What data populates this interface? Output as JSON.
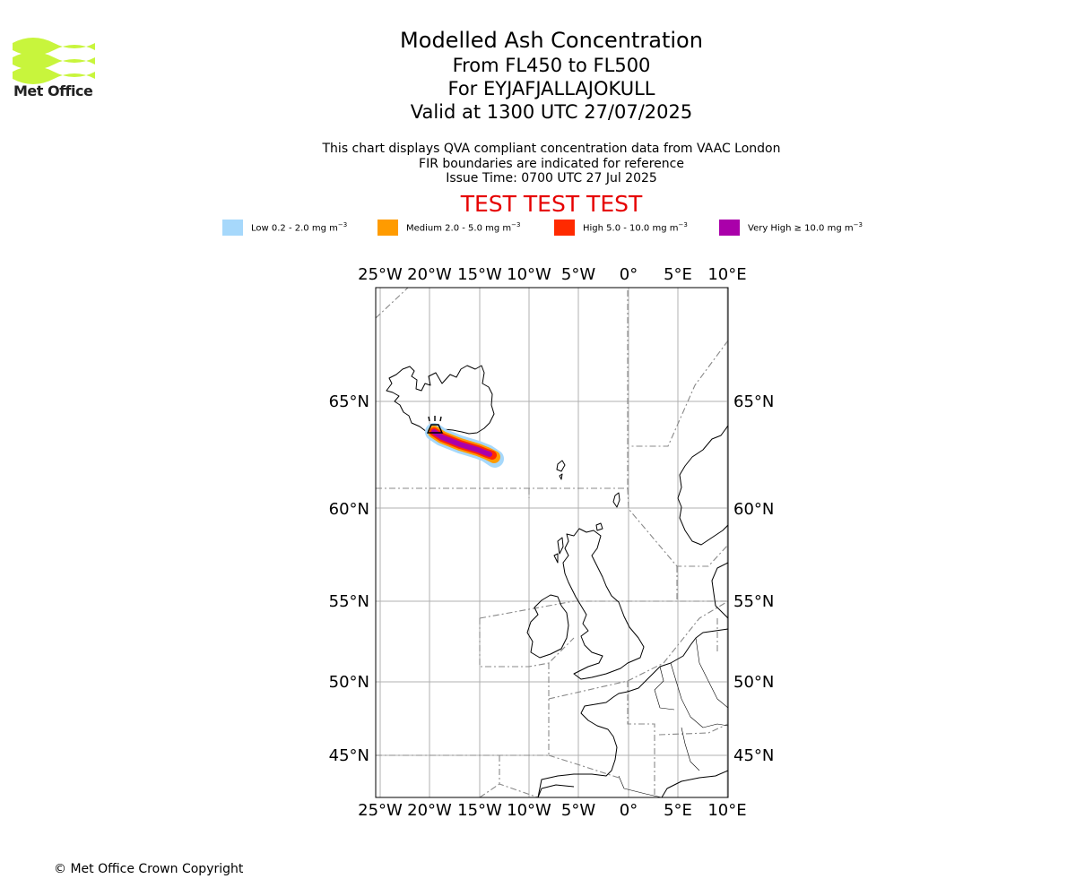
{
  "logo": {
    "text": "Met Office",
    "colors": {
      "wave": "#c8f53c",
      "text": "#222222"
    }
  },
  "title": {
    "line1": "Modelled Ash Concentration",
    "line2": "From FL450 to FL500",
    "line3": "For EYJAFJALLAJOKULL",
    "line4": "Valid at 1300 UTC 27/07/2025"
  },
  "info": {
    "line1": "This chart displays QVA compliant concentration data from VAAC London",
    "line2": "FIR boundaries are indicated for reference",
    "line3": "Issue Time: 0700 UTC 27 Jul 2025"
  },
  "test_banner": "TEST TEST TEST",
  "legend": [
    {
      "label": "Low 0.2 - 2.0 mg m",
      "sup": "−3",
      "color": "#a6d8fb"
    },
    {
      "label": "Medium 2.0 - 5.0 mg m",
      "sup": "−3",
      "color": "#ff9b00"
    },
    {
      "label": "High 5.0 - 10.0 mg m",
      "sup": "−3",
      "color": "#ff2a00"
    },
    {
      "label": "Very High  ≥  10.0 mg m",
      "sup": "−3",
      "color": "#aa00aa"
    }
  ],
  "map": {
    "lon_range": [
      -25.5,
      10
    ],
    "lat_range": [
      43,
      69.5
    ],
    "lon_ticks": [
      {
        "value": -25,
        "label": "25°W"
      },
      {
        "value": -20,
        "label": "20°W"
      },
      {
        "value": -15,
        "label": "15°W"
      },
      {
        "value": -10,
        "label": "10°W"
      },
      {
        "value": -5,
        "label": "5°W"
      },
      {
        "value": 0,
        "label": "0°"
      },
      {
        "value": 5,
        "label": "5°E"
      },
      {
        "value": 10,
        "label": "10°E"
      }
    ],
    "lat_ticks": [
      {
        "value": 65,
        "label": "65°N"
      },
      {
        "value": 60,
        "label": "60°N"
      },
      {
        "value": 55,
        "label": "55°N"
      },
      {
        "value": 50,
        "label": "50°N"
      },
      {
        "value": 45,
        "label": "45°N"
      }
    ],
    "volcano": {
      "name": "EYJAFJALLAJOKULL",
      "lon": -19.6,
      "lat": 63.6
    },
    "gridlines": true,
    "fir_boundaries": true
  },
  "copyright": "© Met Office Crown Copyright"
}
